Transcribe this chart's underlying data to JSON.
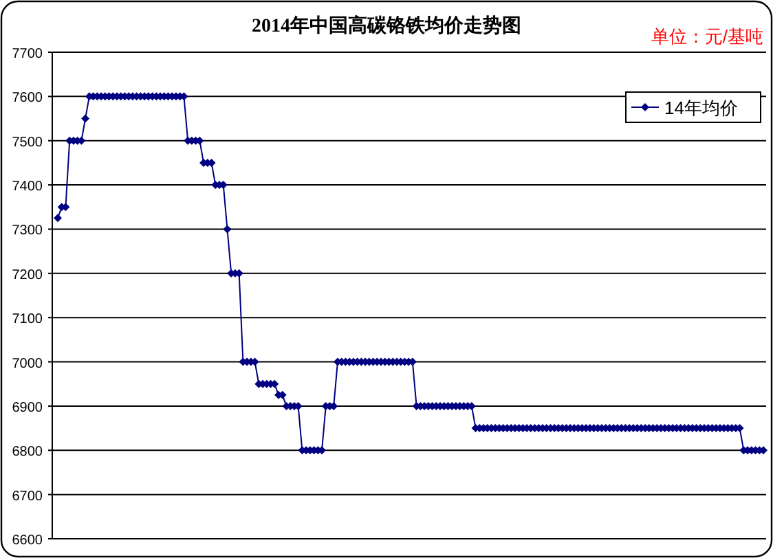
{
  "chart_data": {
    "type": "line",
    "title": "2014年中国高碳铬铁均价走势图",
    "annotations": [
      "单位：元/基吨"
    ],
    "categories": [
      null,
      null,
      null,
      null,
      null,
      null,
      null,
      null,
      null,
      null,
      null,
      null,
      null,
      null,
      null,
      null,
      null,
      null,
      null,
      null,
      null,
      null,
      null,
      null,
      null,
      null,
      null,
      null,
      null,
      null,
      null,
      null,
      null,
      null,
      null,
      null,
      null,
      null,
      null,
      null,
      null,
      null,
      null,
      null,
      null,
      null,
      null,
      null,
      null,
      null,
      null,
      null,
      null,
      null,
      null,
      null,
      null,
      null,
      null,
      null,
      null,
      null,
      null,
      null,
      null,
      null,
      null,
      null,
      null,
      null,
      null,
      null,
      null,
      null,
      null,
      null,
      null,
      null,
      null,
      null,
      null,
      null,
      null,
      null,
      null,
      null,
      null,
      null,
      null,
      null,
      null,
      null,
      null,
      null,
      null,
      null,
      null,
      null,
      null,
      null,
      null,
      null,
      null,
      null,
      null,
      null,
      null,
      null,
      null,
      null,
      null,
      null,
      null,
      null,
      null,
      null,
      null,
      null,
      null,
      null,
      null,
      null,
      null,
      null,
      null,
      null,
      null,
      null,
      null,
      null,
      null,
      null,
      null,
      null,
      null,
      null,
      null,
      null,
      null,
      null,
      null,
      null,
      null,
      null,
      null,
      null,
      null,
      null,
      null,
      null,
      null,
      null,
      null,
      null,
      null,
      null,
      null,
      null,
      null,
      null,
      null,
      null,
      null,
      null,
      null,
      null,
      null,
      null,
      null,
      null,
      null,
      null,
      null,
      null,
      null,
      null,
      null,
      null,
      null,
      null
    ],
    "series": [
      {
        "name": "14年均价",
        "color": "#000080",
        "values": [
          7325,
          7350,
          7350,
          7500,
          7500,
          7500,
          7500,
          7550,
          7600,
          7600,
          7600,
          7600,
          7600,
          7600,
          7600,
          7600,
          7600,
          7600,
          7600,
          7600,
          7600,
          7600,
          7600,
          7600,
          7600,
          7600,
          7600,
          7600,
          7600,
          7600,
          7600,
          7600,
          7600,
          7500,
          7500,
          7500,
          7500,
          7450,
          7450,
          7450,
          7400,
          7400,
          7400,
          7300,
          7200,
          7200,
          7200,
          7000,
          7000,
          7000,
          7000,
          6950,
          6950,
          6950,
          6950,
          6950,
          6925,
          6925,
          6900,
          6900,
          6900,
          6900,
          6800,
          6800,
          6800,
          6800,
          6800,
          6800,
          6900,
          6900,
          6900,
          7000,
          7000,
          7000,
          7000,
          7000,
          7000,
          7000,
          7000,
          7000,
          7000,
          7000,
          7000,
          7000,
          7000,
          7000,
          7000,
          7000,
          7000,
          7000,
          7000,
          6900,
          6900,
          6900,
          6900,
          6900,
          6900,
          6900,
          6900,
          6900,
          6900,
          6900,
          6900,
          6900,
          6900,
          6900,
          6850,
          6850,
          6850,
          6850,
          6850,
          6850,
          6850,
          6850,
          6850,
          6850,
          6850,
          6850,
          6850,
          6850,
          6850,
          6850,
          6850,
          6850,
          6850,
          6850,
          6850,
          6850,
          6850,
          6850,
          6850,
          6850,
          6850,
          6850,
          6850,
          6850,
          6850,
          6850,
          6850,
          6850,
          6850,
          6850,
          6850,
          6850,
          6850,
          6850,
          6850,
          6850,
          6850,
          6850,
          6850,
          6850,
          6850,
          6850,
          6850,
          6850,
          6850,
          6850,
          6850,
          6850,
          6850,
          6850,
          6850,
          6850,
          6850,
          6850,
          6850,
          6850,
          6850,
          6850,
          6850,
          6850,
          6850,
          6850,
          6800,
          6800,
          6800,
          6800,
          6800,
          6800
        ]
      }
    ],
    "ylim": [
      6600,
      7700
    ],
    "yticks": [
      6600,
      6700,
      6800,
      6900,
      7000,
      7100,
      7200,
      7300,
      7400,
      7500,
      7600,
      7700
    ],
    "tick_labels": "y",
    "grid": "y",
    "legend": "top right",
    "marker": "diamond",
    "line_style": "solid"
  }
}
